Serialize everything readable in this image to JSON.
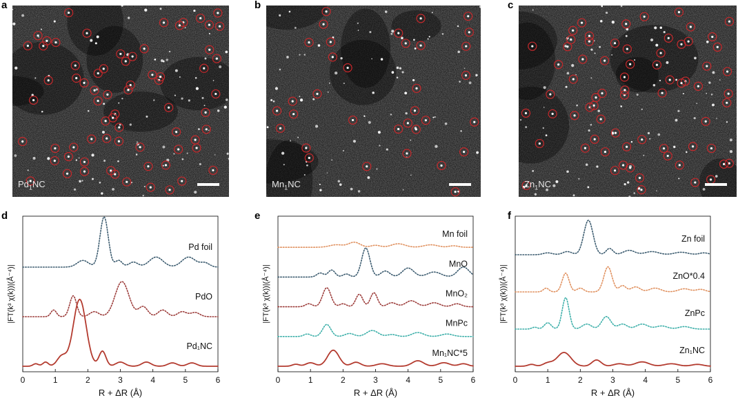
{
  "panels": [
    {
      "label": "a",
      "sample": "Pd₁NC",
      "sample_main": "Pd",
      "sample_sub": "1",
      "sample_rest": "NC"
    },
    {
      "label": "b",
      "sample": "Mn₁NC",
      "sample_main": "Mn",
      "sample_sub": "1",
      "sample_rest": "NC"
    },
    {
      "label": "c",
      "sample": "Zn₁NC",
      "sample_main": "Zn",
      "sample_sub": "1",
      "sample_rest": "NC"
    }
  ],
  "chart_data": [
    {
      "type": "line",
      "panel": "d",
      "xlabel": "R + ΔR (Å)",
      "ylabel": "|FT(k³ χ(k))|(Å⁻⁴)|",
      "xlim": [
        0,
        6
      ],
      "xticks": [
        0,
        1,
        2,
        3,
        4,
        5,
        6
      ],
      "series": [
        {
          "name": "Pd foil",
          "color": "#3a5a6e",
          "dotted": true,
          "peaks": [
            [
              1.85,
              8,
              0.25
            ],
            [
              2.5,
              60,
              0.18
            ],
            [
              2.95,
              8,
              0.15
            ],
            [
              3.4,
              6,
              0.2
            ],
            [
              4.1,
              12,
              0.3
            ],
            [
              5.1,
              12,
              0.3
            ],
            [
              5.6,
              5,
              0.2
            ]
          ]
        },
        {
          "name": "PdO",
          "color": "#9b3a38",
          "dotted": true,
          "peaks": [
            [
              0.95,
              8,
              0.12
            ],
            [
              1.55,
              25,
              0.15
            ],
            [
              2.2,
              6,
              0.2
            ],
            [
              3.05,
              42,
              0.3
            ],
            [
              3.7,
              12,
              0.2
            ],
            [
              4.3,
              8,
              0.2
            ],
            [
              4.9,
              6,
              0.2
            ],
            [
              5.3,
              5,
              0.2
            ]
          ]
        },
        {
          "name": "Pd₁NC",
          "color": "#b33a2e",
          "dotted": false,
          "peaks": [
            [
              0.4,
              3,
              0.12
            ],
            [
              0.7,
              5,
              0.12
            ],
            [
              1.2,
              12,
              0.2
            ],
            [
              1.75,
              80,
              0.28
            ],
            [
              2.45,
              18,
              0.15
            ],
            [
              3.0,
              5,
              0.2
            ],
            [
              3.8,
              5,
              0.2
            ],
            [
              4.6,
              4,
              0.2
            ],
            [
              5.2,
              4,
              0.2
            ]
          ]
        }
      ]
    },
    {
      "type": "line",
      "panel": "e",
      "xlabel": "R + ΔR (Å)",
      "ylabel": "|FT(k³ χ(k))|(Å⁻⁴)|",
      "xlim": [
        0,
        6
      ],
      "xticks": [
        0,
        1,
        2,
        3,
        4,
        5,
        6
      ],
      "series": [
        {
          "name": "Mn foil",
          "color": "#e0905e",
          "dotted": true,
          "peaks": [
            [
              1.8,
              5,
              0.3
            ],
            [
              2.35,
              10,
              0.25
            ],
            [
              3.0,
              4,
              0.2
            ],
            [
              3.7,
              7,
              0.3
            ],
            [
              4.7,
              5,
              0.3
            ],
            [
              5.4,
              3,
              0.2
            ]
          ]
        },
        {
          "name": "MnO",
          "color": "#3a5a6e",
          "dotted": true,
          "peaks": [
            [
              1.3,
              8,
              0.15
            ],
            [
              1.65,
              14,
              0.15
            ],
            [
              2.1,
              6,
              0.15
            ],
            [
              2.7,
              58,
              0.18
            ],
            [
              3.3,
              12,
              0.2
            ],
            [
              4.0,
              18,
              0.25
            ],
            [
              4.8,
              10,
              0.3
            ],
            [
              5.7,
              20,
              0.25
            ]
          ]
        },
        {
          "name": "MnO₂",
          "color": "#9b3a38",
          "dotted": true,
          "peaks": [
            [
              0.95,
              6,
              0.15
            ],
            [
              1.5,
              38,
              0.18
            ],
            [
              2.0,
              6,
              0.15
            ],
            [
              2.5,
              25,
              0.15
            ],
            [
              2.95,
              28,
              0.15
            ],
            [
              3.5,
              8,
              0.2
            ],
            [
              4.1,
              12,
              0.25
            ],
            [
              4.8,
              8,
              0.25
            ],
            [
              5.5,
              6,
              0.2
            ]
          ]
        },
        {
          "name": "MnPc",
          "color": "#3aaea8",
          "dotted": true,
          "peaks": [
            [
              0.9,
              5,
              0.15
            ],
            [
              1.5,
              24,
              0.18
            ],
            [
              2.2,
              6,
              0.2
            ],
            [
              2.9,
              12,
              0.25
            ],
            [
              3.5,
              4,
              0.2
            ],
            [
              4.3,
              8,
              0.25
            ],
            [
              5.2,
              5,
              0.25
            ]
          ]
        },
        {
          "name": "Mn₁NC*5",
          "color": "#b33a2e",
          "dotted": false,
          "peaks": [
            [
              0.55,
              4,
              0.15
            ],
            [
              1.0,
              7,
              0.2
            ],
            [
              1.7,
              32,
              0.25
            ],
            [
              2.4,
              8,
              0.2
            ],
            [
              3.2,
              5,
              0.25
            ],
            [
              4.3,
              11,
              0.25
            ],
            [
              5.1,
              7,
              0.25
            ],
            [
              5.7,
              5,
              0.2
            ]
          ]
        }
      ]
    },
    {
      "type": "line",
      "panel": "f",
      "xlabel": "R + ΔR (Å)",
      "ylabel": "|FT(k³ χ(k))|(Å⁻⁴)|",
      "xlim": [
        0,
        6
      ],
      "xticks": [
        0,
        1,
        2,
        3,
        4,
        5,
        6
      ],
      "series": [
        {
          "name": "Zn foil",
          "color": "#3a5a6e",
          "dotted": true,
          "peaks": [
            [
              1.0,
              3,
              0.2
            ],
            [
              1.6,
              5,
              0.2
            ],
            [
              2.25,
              55,
              0.2
            ],
            [
              2.9,
              10,
              0.15
            ],
            [
              3.5,
              7,
              0.25
            ],
            [
              4.2,
              5,
              0.3
            ],
            [
              5.1,
              4,
              0.3
            ],
            [
              5.8,
              3,
              0.2
            ]
          ]
        },
        {
          "name": "ZnO*0.4",
          "color": "#e0905e",
          "dotted": true,
          "peaks": [
            [
              0.95,
              6,
              0.12
            ],
            [
              1.55,
              30,
              0.15
            ],
            [
              2.0,
              6,
              0.15
            ],
            [
              2.85,
              40,
              0.18
            ],
            [
              3.3,
              10,
              0.15
            ],
            [
              3.7,
              8,
              0.2
            ],
            [
              4.3,
              6,
              0.25
            ],
            [
              5.2,
              5,
              0.25
            ],
            [
              5.7,
              4,
              0.2
            ]
          ]
        },
        {
          "name": "ZnPc",
          "color": "#3aaea8",
          "dotted": true,
          "peaks": [
            [
              0.6,
              3,
              0.12
            ],
            [
              1.0,
              10,
              0.15
            ],
            [
              1.55,
              50,
              0.15
            ],
            [
              2.2,
              8,
              0.2
            ],
            [
              2.8,
              20,
              0.2
            ],
            [
              3.3,
              8,
              0.2
            ],
            [
              3.9,
              8,
              0.25
            ],
            [
              4.5,
              5,
              0.25
            ],
            [
              5.2,
              4,
              0.25
            ]
          ]
        },
        {
          "name": "Zn₁NC",
          "color": "#b33a2e",
          "dotted": false,
          "peaks": [
            [
              0.5,
              3,
              0.15
            ],
            [
              1.0,
              5,
              0.2
            ],
            [
              1.5,
              22,
              0.3
            ],
            [
              2.5,
              10,
              0.2
            ],
            [
              3.2,
              4,
              0.25
            ],
            [
              3.9,
              7,
              0.3
            ],
            [
              4.8,
              4,
              0.3
            ],
            [
              5.6,
              3,
              0.25
            ]
          ]
        }
      ]
    }
  ]
}
